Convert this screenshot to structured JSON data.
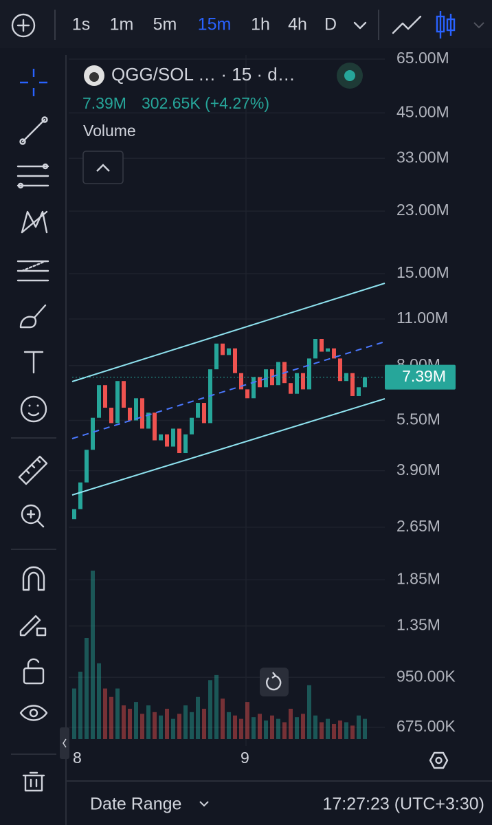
{
  "toolbar": {
    "intervals": [
      "1s",
      "1m",
      "5m",
      "15m",
      "1h",
      "4h",
      "D"
    ],
    "active_interval": 3
  },
  "legend": {
    "symbol": "QGG/SOL … · 15 · d…",
    "last": "7.39M",
    "change": "302.65K (+4.27%)",
    "indicator": "Volume"
  },
  "price_axis": {
    "scale": "log",
    "ticks": [
      {
        "value": 65,
        "label": "65.00M"
      },
      {
        "value": 45,
        "label": "45.00M"
      },
      {
        "value": 33,
        "label": "33.00M"
      },
      {
        "value": 23,
        "label": "23.00M"
      },
      {
        "value": 15,
        "label": "15.00M"
      },
      {
        "value": 11,
        "label": "11.00M"
      },
      {
        "value": 8,
        "label": "8.00M"
      },
      {
        "value": 5.5,
        "label": "5.50M"
      },
      {
        "value": 3.9,
        "label": "3.90M"
      },
      {
        "value": 2.65,
        "label": "2.65M"
      },
      {
        "value": 1.85,
        "label": "1.85M"
      },
      {
        "value": 1.35,
        "label": "1.35M"
      },
      {
        "value": 0.95,
        "label": "950.00K"
      },
      {
        "value": 0.675,
        "label": "675.00K"
      }
    ],
    "last_price": {
      "value": 7.39,
      "label": "7.39M"
    }
  },
  "candles": {
    "open": [
      2.8,
      3.0,
      3.6,
      4.5,
      5.6,
      7.0,
      6.0,
      5.4,
      7.2,
      6.0,
      5.5,
      6.4,
      5.2,
      5.8,
      4.8,
      5.0,
      4.6,
      5.2,
      4.4,
      5.0,
      5.6,
      6.2,
      5.4,
      7.8,
      9.3,
      8.6,
      9.0,
      7.6,
      6.8,
      6.4,
      7.4,
      6.9,
      7.8,
      7.0,
      8.2,
      7.1,
      6.6,
      7.6,
      6.8,
      8.4,
      9.6,
      8.8,
      9.0,
      8.4,
      7.2,
      7.6,
      6.5,
      6.9
    ],
    "close": [
      3.0,
      3.6,
      4.5,
      5.6,
      7.0,
      6.0,
      5.4,
      7.2,
      6.0,
      5.5,
      6.4,
      5.2,
      5.8,
      4.8,
      5.0,
      4.6,
      5.2,
      4.4,
      5.0,
      5.6,
      6.2,
      5.4,
      7.8,
      9.3,
      8.6,
      9.0,
      7.6,
      6.8,
      6.4,
      7.4,
      6.9,
      7.8,
      7.0,
      8.2,
      7.1,
      6.6,
      7.6,
      6.8,
      8.4,
      9.6,
      8.8,
      9.0,
      8.4,
      7.2,
      7.6,
      6.5,
      6.9,
      7.39
    ],
    "volume": [
      3,
      4,
      6,
      10,
      4.5,
      3,
      2.5,
      3,
      2,
      1.8,
      2.2,
      1.5,
      2,
      1.6,
      1.4,
      1.8,
      1.2,
      1.5,
      2,
      1.6,
      2.5,
      1.8,
      3.5,
      3.8,
      2.4,
      1.6,
      1.4,
      1.2,
      2.2,
      1.3,
      1.5,
      1.1,
      1.4,
      1.2,
      1,
      1.8,
      1.3,
      1.5,
      3.2,
      1.4,
      1,
      1.2,
      0.9,
      1.1,
      1,
      0.8,
      1.4,
      1.2
    ]
  },
  "time_axis": {
    "labels": [
      "8",
      "9"
    ]
  },
  "footer": {
    "range": "Date Range",
    "time": "17:27:23 (UTC+3:30)"
  }
}
